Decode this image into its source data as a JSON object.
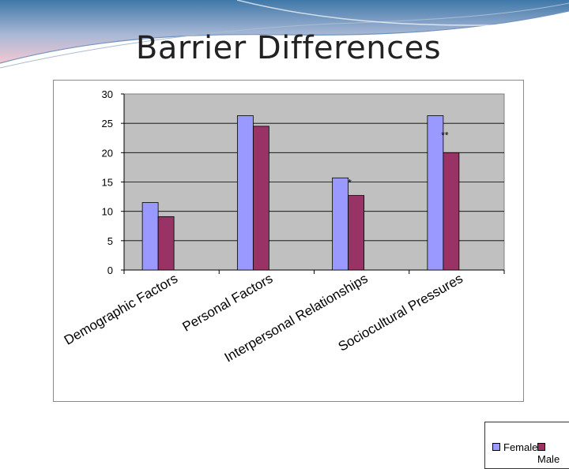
{
  "slide": {
    "title": "Barrier Differences"
  },
  "colors": {
    "female": "#9999ff",
    "male": "#993366",
    "plot_background": "#c0c0c0",
    "banner_top": "#3f78a8",
    "banner_bottom": "#f3c8d3"
  },
  "chart_data": {
    "type": "bar",
    "categories": [
      "Demographic Factors",
      "Personal Factors",
      "Interpersonal Relationships",
      "Sociocultural Pressures"
    ],
    "series": [
      {
        "name": "Female",
        "values": [
          11.5,
          26.3,
          15.7,
          26.3
        ]
      },
      {
        "name": "Male",
        "values": [
          9.1,
          24.5,
          12.7,
          20.0
        ]
      }
    ],
    "annotations": [
      "",
      "",
      "*",
      "**"
    ],
    "yticks": [
      "0",
      "5",
      "10",
      "15",
      "20",
      "25",
      "30"
    ],
    "ylim": [
      0,
      30
    ],
    "grid": true,
    "legend": "bottom-right",
    "xlabel": "",
    "ylabel": ""
  }
}
